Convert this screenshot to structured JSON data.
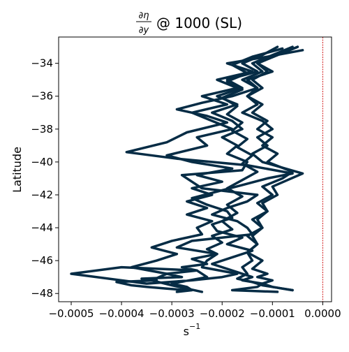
{
  "chart_data": {
    "type": "line",
    "title_fraction": {
      "numerator": "∂η",
      "denominator": "∂y"
    },
    "title_suffix": "@ 1000 (SL)",
    "xlabel_base": "s",
    "xlabel_exp": "−1",
    "ylabel": "Latitude",
    "xlim": [
      -0.000525,
      1.75e-05
    ],
    "ylim": [
      -48.5,
      -32.4
    ],
    "x_ticks": [
      -0.0005,
      -0.0004,
      -0.0003,
      -0.0002,
      -0.0001,
      0.0
    ],
    "x_tick_labels": [
      "−0.0005",
      "−0.0004",
      "−0.0003",
      "−0.0002",
      "−0.0001",
      "0.0000"
    ],
    "y_ticks": [
      -48,
      -46,
      -44,
      -42,
      -40,
      -38,
      -36,
      -34
    ],
    "y_tick_labels": [
      "−48",
      "−46",
      "−44",
      "−42",
      "−40",
      "−38",
      "−36",
      "−34"
    ],
    "line_color": "#062c45",
    "reference_line": {
      "x": 0.0,
      "color": "#cc0000",
      "style": "dashed"
    },
    "grid": false,
    "legend": "none",
    "series": [
      {
        "x": [
          -9e-05,
          -0.00012,
          -0.00016,
          -0.00013,
          -0.00019,
          -0.00016,
          -0.00021,
          -0.00017,
          -0.00022,
          -0.00018,
          -0.00016,
          -0.0002,
          -0.00017,
          -0.00019,
          -0.00015,
          -0.00016,
          -0.00028,
          -0.00026,
          -0.00024,
          -0.00013,
          -0.00015,
          -0.00019,
          -0.00022,
          -0.00017,
          -0.00015,
          -0.00014,
          -0.00026,
          -0.00029,
          -0.00021,
          -0.00023,
          -0.00024,
          -0.00017,
          -0.0002,
          -0.00026,
          -0.00035,
          -0.0005,
          -0.0004,
          -0.00025,
          -0.00023,
          -0.0003,
          -0.00027,
          -0.00026,
          -0.00029
        ],
        "y": [
          -33.0,
          -33.5,
          -34.0,
          -34.5,
          -35.0,
          -35.5,
          -36.0,
          -36.5,
          -37.0,
          -37.5,
          -38.0,
          -38.5,
          -39.0,
          -39.5,
          -40.0,
          -40.5,
          -40.8,
          -41.2,
          -41.6,
          -42.0,
          -42.4,
          -42.8,
          -43.2,
          -43.6,
          -44.0,
          -44.4,
          -44.8,
          -45.2,
          -45.6,
          -46.0,
          -46.4,
          -46.8,
          -47.0,
          -47.2,
          -47.4,
          -46.8,
          -46.4,
          -46.6,
          -47.0,
          -47.4,
          -47.6,
          -47.8,
          -47.9
        ]
      },
      {
        "x": [
          -5e-05,
          -9e-05,
          -0.00013,
          -0.0001,
          -0.00015,
          -0.00013,
          -0.00018,
          -0.00024,
          -0.00029,
          -0.00023,
          -0.00019,
          -0.00027,
          -0.00031,
          -0.00039,
          -0.00029,
          -0.00015,
          -6e-05,
          -0.00011,
          -0.00016,
          -0.00021,
          -0.00026,
          -0.00023,
          -0.00019,
          -0.00018,
          -0.00022,
          -0.00021,
          -0.00016,
          -0.00019,
          -0.00014,
          -0.00018,
          -0.00022,
          -0.00018,
          -0.00014,
          -0.00016,
          -0.00012,
          -0.00013,
          -0.00018,
          -9e-05
        ],
        "y": [
          -33.0,
          -33.5,
          -34.0,
          -34.5,
          -35.0,
          -35.5,
          -36.0,
          -36.4,
          -36.8,
          -37.2,
          -37.6,
          -38.2,
          -38.8,
          -39.4,
          -39.8,
          -40.2,
          -40.7,
          -41.0,
          -41.4,
          -41.8,
          -42.2,
          -42.6,
          -43.0,
          -43.4,
          -43.8,
          -44.2,
          -44.6,
          -45.0,
          -45.4,
          -45.8,
          -46.2,
          -46.6,
          -47.0,
          -47.2,
          -47.4,
          -47.6,
          -47.8,
          -47.9
        ]
      },
      {
        "x": [
          -4e-05,
          -0.00011,
          -0.00019,
          -0.00014,
          -0.00021,
          -0.00017,
          -0.00024,
          -0.00019,
          -0.00026,
          -0.00022,
          -0.00018,
          -0.00025,
          -0.00023,
          -0.00031,
          -0.00026,
          -0.00018,
          -0.00025,
          -0.0002,
          -0.00026,
          -0.00022,
          -0.00027,
          -0.00023,
          -0.00027,
          -0.00022,
          -0.00025,
          -0.00024,
          -0.0003,
          -0.00034,
          -0.00029,
          -0.00033,
          -0.00038,
          -0.00031,
          -0.00034,
          -0.0003,
          -0.00027,
          -0.00024
        ],
        "y": [
          -33.2,
          -33.6,
          -34.0,
          -34.5,
          -35.0,
          -35.5,
          -36.0,
          -36.5,
          -37.0,
          -37.5,
          -38.0,
          -38.5,
          -39.0,
          -39.6,
          -40.0,
          -40.4,
          -40.8,
          -41.2,
          -41.6,
          -42.0,
          -42.4,
          -42.8,
          -43.2,
          -43.6,
          -44.0,
          -44.4,
          -44.8,
          -45.2,
          -45.6,
          -46.0,
          -46.4,
          -46.8,
          -47.2,
          -47.5,
          -47.7,
          -47.9
        ]
      },
      {
        "x": [
          -6e-05,
          -0.0001,
          -0.00014,
          -0.00012,
          -0.00016,
          -0.00013,
          -0.00015,
          -0.00012,
          -0.00014,
          -0.00011,
          -0.00013,
          -0.0001,
          -0.00012,
          -9e-05,
          -0.00011,
          -6e-05,
          -8e-05,
          -0.00012,
          -0.0001,
          -0.00013,
          -0.00011,
          -0.00014,
          -0.00012,
          -0.00015,
          -0.00013,
          -0.00015,
          -0.00012,
          -0.00014,
          -0.00011,
          -0.00013,
          -0.0001,
          -0.00012,
          -0.0001,
          -8e-05,
          -6e-05
        ],
        "y": [
          -33.0,
          -33.5,
          -34.0,
          -34.5,
          -35.0,
          -35.5,
          -36.0,
          -36.5,
          -37.0,
          -37.5,
          -38.0,
          -38.5,
          -39.0,
          -39.5,
          -40.0,
          -40.6,
          -41.0,
          -41.5,
          -42.0,
          -42.5,
          -43.0,
          -43.5,
          -44.0,
          -44.5,
          -45.0,
          -45.5,
          -46.0,
          -46.5,
          -46.8,
          -47.0,
          -47.2,
          -47.4,
          -47.6,
          -47.7,
          -47.8
        ]
      },
      {
        "x": [
          -8e-05,
          -0.00014,
          -0.00018,
          -0.00015,
          -0.00019,
          -0.00016,
          -0.0002,
          -0.00017,
          -0.00019,
          -0.00016,
          -0.00018,
          -0.00015,
          -0.00017,
          -0.00014,
          -0.00016,
          -0.00013,
          -0.00016,
          -0.00019,
          -0.00016,
          -0.00019,
          -0.00017,
          -0.0002,
          -0.00018,
          -0.00022,
          -0.0002,
          -0.00023,
          -0.00021,
          -0.00026,
          -0.00023,
          -0.00028,
          -0.00025,
          -0.00031,
          -0.00028,
          -0.00036,
          -0.00033,
          -0.00041,
          -0.00038,
          -0.00035,
          -0.00031,
          -0.00027
        ],
        "y": [
          -33.1,
          -33.6,
          -34.1,
          -34.6,
          -35.1,
          -35.6,
          -36.1,
          -36.6,
          -37.1,
          -37.6,
          -38.1,
          -38.6,
          -39.1,
          -39.6,
          -40.1,
          -40.6,
          -41.1,
          -41.6,
          -42.1,
          -42.6,
          -43.1,
          -43.6,
          -44.1,
          -44.5,
          -44.9,
          -45.3,
          -45.6,
          -45.9,
          -46.2,
          -46.4,
          -46.6,
          -46.8,
          -47.0,
          -47.1,
          -47.2,
          -47.3,
          -47.5,
          -47.6,
          -47.7,
          -47.8
        ]
      },
      {
        "x": [
          -5e-05,
          -9e-05,
          -0.00013,
          -0.00011,
          -0.00014,
          -0.00012,
          -0.00015,
          -0.00013,
          -0.00016,
          -0.00012,
          -0.0001,
          -0.00013,
          -0.00011,
          -0.00014,
          -0.00012,
          -4e-05,
          -7e-05,
          -0.0001,
          -9e-05,
          -0.00012,
          -0.00011,
          -0.00013,
          -0.00012,
          -0.00014,
          -0.00013,
          -0.00015,
          -0.00014,
          -0.00016,
          -0.00015,
          -0.00017,
          -0.00014,
          -0.00012,
          -0.0001,
          -8e-05,
          -6e-05
        ],
        "y": [
          -33.0,
          -33.5,
          -34.0,
          -34.5,
          -35.0,
          -35.5,
          -36.0,
          -36.5,
          -37.0,
          -37.5,
          -38.0,
          -38.5,
          -39.0,
          -39.5,
          -40.0,
          -40.7,
          -41.1,
          -41.5,
          -42.0,
          -42.5,
          -43.0,
          -43.5,
          -44.0,
          -44.5,
          -45.0,
          -45.5,
          -46.0,
          -46.4,
          -46.8,
          -47.1,
          -47.3,
          -47.5,
          -47.6,
          -47.7,
          -47.8
        ]
      }
    ]
  }
}
